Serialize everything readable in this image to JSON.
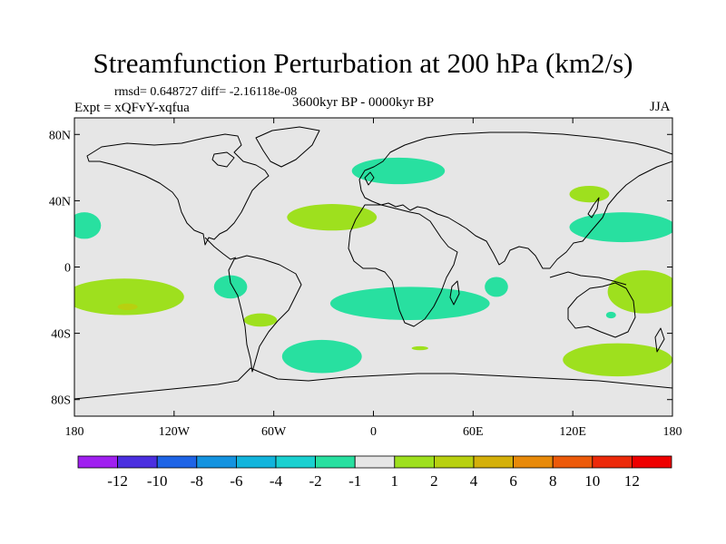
{
  "chart_data": {
    "type": "heatmap",
    "title": "Streamfunction Perturbation at 200 hPa (km2/s)",
    "stats_text": "rmsd= 0.648727 diff= -2.16118e-08",
    "experiment_text": "Expt = xQFvY-xqfua",
    "period_text": "3600kyr BP - 0000kyr BP",
    "season_text": "JJA",
    "x_ticks": [
      {
        "label": "180",
        "lon": -180
      },
      {
        "label": "120W",
        "lon": -120
      },
      {
        "label": "60W",
        "lon": -60
      },
      {
        "label": "0",
        "lon": 0
      },
      {
        "label": "60E",
        "lon": 60
      },
      {
        "label": "120E",
        "lon": 120
      },
      {
        "label": "180",
        "lon": 180
      }
    ],
    "y_ticks": [
      {
        "label": "80N",
        "lat": 80
      },
      {
        "label": "40N",
        "lat": 40
      },
      {
        "label": "0",
        "lat": 0
      },
      {
        "label": "40S",
        "lat": -40
      },
      {
        "label": "80S",
        "lat": -80
      }
    ],
    "xlim": [
      -180,
      180
    ],
    "ylim": [
      -90,
      90
    ],
    "colorbar": {
      "labels": [
        "-12",
        "-10",
        "-8",
        "-6",
        "-4",
        "-2",
        "-1",
        "1",
        "2",
        "4",
        "6",
        "8",
        "10",
        "12"
      ],
      "colors": [
        "#a020f0",
        "#4b2fe0",
        "#1e64e6",
        "#1493e0",
        "#12b4dc",
        "#1ad0d0",
        "#28e0a0",
        "#e6e6e6",
        "#9ee01e",
        "#b8d010",
        "#d4b00a",
        "#e88a0a",
        "#ec5a0a",
        "#ec2a0a",
        "#ee0000"
      ]
    },
    "anomalies": [
      {
        "name": "negative-anomaly-north-atlantic-europe",
        "category": "-2 to -1",
        "color": "#28e0a0",
        "lon": 15,
        "lat": 58,
        "dlon": 28,
        "dlat": 8
      },
      {
        "name": "negative-anomaly-east-pacific-north",
        "category": "-2 to -1",
        "color": "#28e0a0",
        "lon": -174,
        "lat": 25,
        "dlon": 10,
        "dlat": 8
      },
      {
        "name": "negative-anomaly-west-pacific-north",
        "category": "-2 to -1",
        "color": "#28e0a0",
        "lon": 150,
        "lat": 24,
        "dlon": 32,
        "dlat": 9
      },
      {
        "name": "negative-anomaly-east-pacific-tropics",
        "category": "-2 to -1",
        "color": "#28e0a0",
        "lon": -86,
        "lat": -12,
        "dlon": 10,
        "dlat": 7
      },
      {
        "name": "negative-anomaly-south-atlantic-indian",
        "category": "-2 to -1",
        "color": "#28e0a0",
        "lon": 22,
        "lat": -22,
        "dlon": 48,
        "dlat": 10
      },
      {
        "name": "negative-anomaly-indian-ocean",
        "category": "-2 to -1",
        "color": "#28e0a0",
        "lon": 74,
        "lat": -12,
        "dlon": 7,
        "dlat": 6
      },
      {
        "name": "negative-anomaly-south-atlantic",
        "category": "-2 to -1",
        "color": "#28e0a0",
        "lon": -31,
        "lat": -54,
        "dlon": 24,
        "dlat": 10
      },
      {
        "name": "negative-anomaly-tasman",
        "category": "-2 to -1",
        "color": "#28e0a0",
        "lon": 143,
        "lat": -29,
        "dlon": 3,
        "dlat": 2
      },
      {
        "name": "positive-anomaly-north-atlantic",
        "category": "1 to 2",
        "color": "#9ee01e",
        "lon": -25,
        "lat": 30,
        "dlon": 27,
        "dlat": 8
      },
      {
        "name": "positive-anomaly-japan",
        "category": "1 to 2",
        "color": "#9ee01e",
        "lon": 130,
        "lat": 44,
        "dlon": 12,
        "dlat": 5
      },
      {
        "name": "positive-anomaly-central-pacific-south",
        "category": "1 to 2",
        "color": "#9ee01e",
        "lon": -150,
        "lat": -18,
        "dlon": 36,
        "dlat": 11
      },
      {
        "name": "positive-anomaly-southeast-pacific",
        "category": "1 to 2",
        "color": "#9ee01e",
        "lon": -68,
        "lat": -32,
        "dlon": 10,
        "dlat": 4
      },
      {
        "name": "positive-anomaly-west-pacific-south",
        "category": "1 to 2",
        "color": "#9ee01e",
        "lon": 163,
        "lat": -15,
        "dlon": 22,
        "dlat": 13
      },
      {
        "name": "positive-anomaly-south-pacific",
        "category": "1 to 2",
        "color": "#9ee01e",
        "lon": 147,
        "lat": -56,
        "dlon": 33,
        "dlat": 10
      },
      {
        "name": "positive-anomaly-south-africa-small",
        "category": "1 to 2",
        "color": "#9ee01e",
        "lon": 28,
        "lat": -49,
        "dlon": 5,
        "dlat": 1.2
      },
      {
        "name": "positive-anomaly-core-central-pacific",
        "category": "2 to 4",
        "color": "#b8d010",
        "lon": -148,
        "lat": -24,
        "dlon": 6,
        "dlat": 2
      }
    ]
  }
}
